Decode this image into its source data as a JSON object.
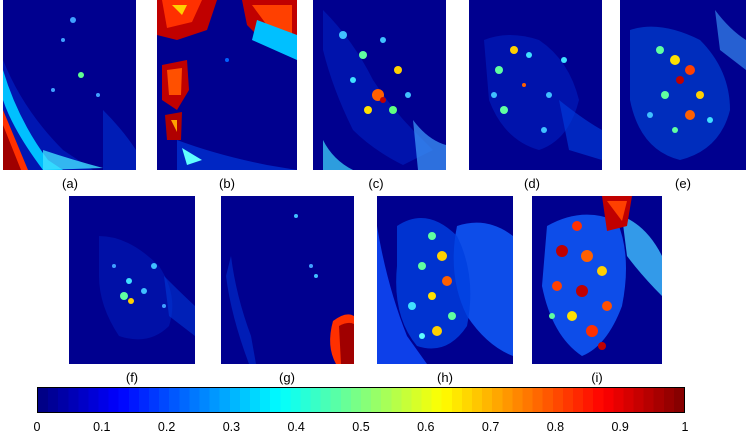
{
  "panels": [
    {
      "label": "(a)",
      "intensity": 0.25
    },
    {
      "label": "(b)",
      "intensity": 0.55
    },
    {
      "label": "(c)",
      "intensity": 0.35
    },
    {
      "label": "(d)",
      "intensity": 0.3
    },
    {
      "label": "(e)",
      "intensity": 0.45
    },
    {
      "label": "(f)",
      "intensity": 0.2
    },
    {
      "label": "(g)",
      "intensity": 0.1
    },
    {
      "label": "(h)",
      "intensity": 0.45
    },
    {
      "label": "(i)",
      "intensity": 0.65
    }
  ],
  "colorbar": {
    "colormap": "jet",
    "min": 0,
    "max": 1,
    "ticks": [
      "0",
      "0.1",
      "0.2",
      "0.3",
      "0.4",
      "0.5",
      "0.6",
      "0.7",
      "0.8",
      "0.9",
      "1"
    ]
  }
}
